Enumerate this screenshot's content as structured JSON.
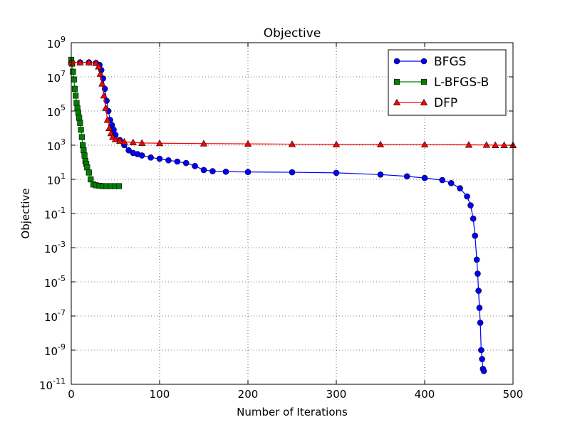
{
  "chart_data": {
    "type": "line",
    "title": "Objective",
    "xlabel": "Number of Iterations",
    "ylabel": "Objective",
    "xlim": [
      0,
      500
    ],
    "ylim_log10": [
      -11,
      9
    ],
    "yscale": "log",
    "grid": true,
    "legend_position": "top-right",
    "x_ticks": [
      0,
      100,
      200,
      300,
      400,
      500
    ],
    "y_tick_exponents": [
      -11,
      -9,
      -7,
      -5,
      -3,
      -1,
      1,
      3,
      5,
      7,
      9
    ],
    "series": [
      {
        "name": "BFGS",
        "color": "#0000ff",
        "marker": "circle",
        "points": [
          [
            0,
            70000000.0
          ],
          [
            10,
            70000000.0
          ],
          [
            20,
            70000000.0
          ],
          [
            28,
            65000000.0
          ],
          [
            32,
            50000000.0
          ],
          [
            34,
            25000000.0
          ],
          [
            36,
            8000000.0
          ],
          [
            38,
            2000000.0
          ],
          [
            40,
            400000.0
          ],
          [
            42,
            100000.0
          ],
          [
            44,
            30000.0
          ],
          [
            46,
            15000.0
          ],
          [
            48,
            8000
          ],
          [
            50,
            4000
          ],
          [
            55,
            2000
          ],
          [
            60,
            1000
          ],
          [
            65,
            500
          ],
          [
            70,
            350
          ],
          [
            75,
            300
          ],
          [
            80,
            250
          ],
          [
            90,
            190
          ],
          [
            100,
            160
          ],
          [
            110,
            130
          ],
          [
            120,
            110
          ],
          [
            130,
            90
          ],
          [
            140,
            60
          ],
          [
            150,
            35
          ],
          [
            160,
            30
          ],
          [
            175,
            28
          ],
          [
            200,
            27
          ],
          [
            250,
            26
          ],
          [
            300,
            24
          ],
          [
            350,
            19
          ],
          [
            380,
            15
          ],
          [
            400,
            12
          ],
          [
            420,
            9
          ],
          [
            430,
            6
          ],
          [
            440,
            3
          ],
          [
            448,
            1
          ],
          [
            452,
            0.3
          ],
          [
            455,
            0.05
          ],
          [
            457,
            0.005
          ],
          [
            459,
            0.0002
          ],
          [
            460,
            3e-05
          ],
          [
            461,
            3e-06
          ],
          [
            462,
            3e-07
          ],
          [
            463,
            4e-08
          ],
          [
            464,
            1e-09
          ],
          [
            465,
            3e-10
          ],
          [
            466,
            8e-11
          ],
          [
            467,
            6e-11
          ]
        ]
      },
      {
        "name": "L-BFGS-B",
        "color": "#008000",
        "marker": "square",
        "points": [
          [
            0,
            100000000.0
          ],
          [
            1,
            60000000.0
          ],
          [
            2,
            20000000.0
          ],
          [
            3,
            7000000.0
          ],
          [
            4,
            2000000.0
          ],
          [
            5,
            800000.0
          ],
          [
            6,
            300000.0
          ],
          [
            7,
            150000.0
          ],
          [
            8,
            80000.0
          ],
          [
            9,
            40000.0
          ],
          [
            10,
            20000.0
          ],
          [
            11,
            8000
          ],
          [
            12,
            3000
          ],
          [
            13,
            1000
          ],
          [
            14,
            500
          ],
          [
            15,
            250
          ],
          [
            16,
            120
          ],
          [
            17,
            80
          ],
          [
            18,
            50
          ],
          [
            20,
            25
          ],
          [
            22,
            10
          ],
          [
            25,
            5
          ],
          [
            28,
            4.5
          ],
          [
            32,
            4.2
          ],
          [
            36,
            4
          ],
          [
            40,
            4
          ],
          [
            45,
            4
          ],
          [
            50,
            4
          ],
          [
            54,
            4
          ]
        ]
      },
      {
        "name": "DFP",
        "color": "#ff0000",
        "marker": "triangle",
        "points": [
          [
            0,
            70000000.0
          ],
          [
            10,
            70000000.0
          ],
          [
            20,
            70000000.0
          ],
          [
            28,
            65000000.0
          ],
          [
            31,
            40000000.0
          ],
          [
            33,
            15000000.0
          ],
          [
            35,
            4000000.0
          ],
          [
            37,
            800000.0
          ],
          [
            39,
            150000.0
          ],
          [
            41,
            30000.0
          ],
          [
            43,
            10000.0
          ],
          [
            45,
            5000
          ],
          [
            47,
            3000
          ],
          [
            50,
            2200
          ],
          [
            55,
            1800
          ],
          [
            60,
            1600
          ],
          [
            70,
            1450
          ],
          [
            80,
            1350
          ],
          [
            100,
            1300
          ],
          [
            150,
            1250
          ],
          [
            200,
            1200
          ],
          [
            250,
            1150
          ],
          [
            300,
            1100
          ],
          [
            350,
            1100
          ],
          [
            400,
            1080
          ],
          [
            450,
            1050
          ],
          [
            470,
            1030
          ],
          [
            480,
            1000
          ],
          [
            490,
            1000
          ],
          [
            500,
            1000
          ]
        ]
      }
    ]
  }
}
